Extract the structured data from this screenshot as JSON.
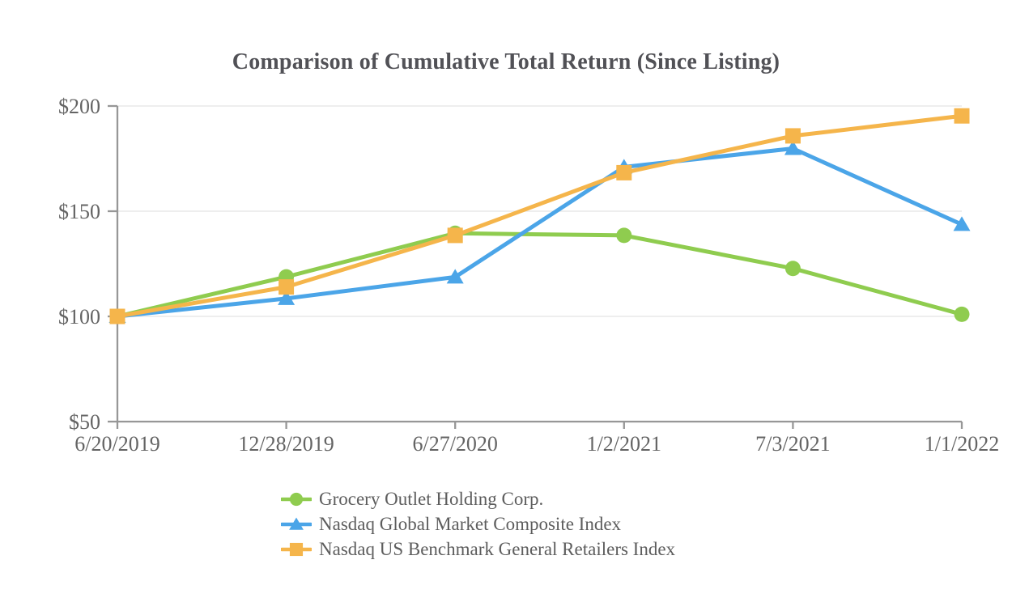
{
  "chart_data": {
    "type": "line",
    "title": "Comparison of Cumulative Total Return (Since Listing)",
    "categories": [
      "6/20/2019",
      "12/28/2019",
      "6/27/2020",
      "1/2/2021",
      "7/3/2021",
      "1/1/2022"
    ],
    "series": [
      {
        "name": "Grocery Outlet Holding Corp.",
        "marker": "circle",
        "color": "#8FCC4F",
        "values": [
          100,
          118.8,
          139.5,
          138.5,
          122.8,
          101.0
        ]
      },
      {
        "name": "Nasdaq Global Market Composite Index",
        "marker": "triangle",
        "color": "#4BA5E8",
        "values": [
          100,
          108.5,
          118.7,
          171.0,
          179.8,
          143.7
        ]
      },
      {
        "name": "Nasdaq US Benchmark General Retailers Index",
        "marker": "square",
        "color": "#F5B54B",
        "values": [
          100,
          114.0,
          138.5,
          168.3,
          185.8,
          195.3
        ]
      }
    ],
    "xlabel": "",
    "ylabel": "",
    "y_axis": {
      "min": 50,
      "max": 200,
      "ticks": [
        {
          "value": 50,
          "label": "$50"
        },
        {
          "value": 100,
          "label": "$100"
        },
        {
          "value": 150,
          "label": "$150"
        },
        {
          "value": 200,
          "label": "$200"
        }
      ]
    },
    "grid": true,
    "legend_position": "bottom-left",
    "colors": {
      "axis": "#979797",
      "gridline": "#e9e9e9",
      "title_text": "#515156",
      "tick_text": "#646464",
      "legend_text": "#5d5d5d"
    }
  }
}
